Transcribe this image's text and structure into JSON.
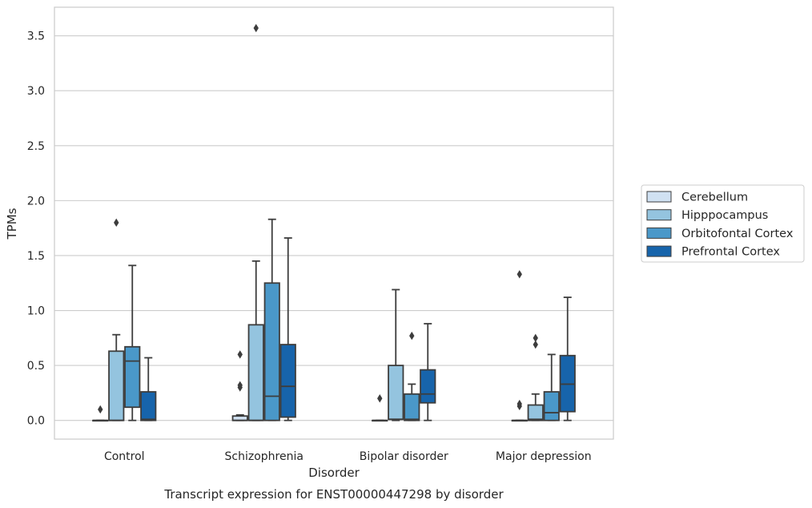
{
  "chart_data": {
    "type": "box",
    "title": "",
    "caption": "Transcript expression for ENST00000447298 by disorder",
    "xlabel": "Disorder",
    "ylabel": "TPMs",
    "ylim": [
      -0.17,
      3.76
    ],
    "yticks": [
      0.0,
      0.5,
      1.0,
      1.5,
      2.0,
      2.5,
      3.0,
      3.5
    ],
    "ytick_labels": [
      "0.0",
      "0.5",
      "1.0",
      "1.5",
      "2.0",
      "2.5",
      "3.0",
      "3.5"
    ],
    "categories": [
      "Control",
      "Schizophrenia",
      "Bipolar disorder",
      "Major depression"
    ],
    "grid": "horizontal",
    "legend_position": "right",
    "series": [
      {
        "name": "Cerebellum",
        "color": "#d0e1f2",
        "boxes": [
          {
            "q1": 0.0,
            "median": 0.0,
            "q3": 0.0,
            "whislo": 0.0,
            "whishi": 0.0,
            "fliers": [
              0.1
            ]
          },
          {
            "q1": 0.0,
            "median": 0.0,
            "q3": 0.04,
            "whislo": 0.0,
            "whishi": 0.05,
            "fliers": [
              0.3,
              0.32,
              0.6
            ]
          },
          {
            "q1": 0.0,
            "median": 0.0,
            "q3": 0.0,
            "whislo": 0.0,
            "whishi": 0.0,
            "fliers": [
              0.2
            ]
          },
          {
            "q1": 0.0,
            "median": 0.0,
            "q3": 0.0,
            "whislo": 0.0,
            "whishi": 0.0,
            "fliers": [
              0.13,
              0.15,
              1.33
            ]
          }
        ]
      },
      {
        "name": "Hipppocampus",
        "color": "#94c4df",
        "boxes": [
          {
            "q1": 0.0,
            "median": 0.0,
            "q3": 0.63,
            "whislo": 0.0,
            "whishi": 0.78,
            "fliers": [
              1.8
            ]
          },
          {
            "q1": 0.0,
            "median": 0.0,
            "q3": 0.87,
            "whislo": 0.0,
            "whishi": 1.45,
            "fliers": [
              3.57
            ]
          },
          {
            "q1": 0.01,
            "median": 0.01,
            "q3": 0.5,
            "whislo": 0.0,
            "whishi": 1.19,
            "fliers": []
          },
          {
            "q1": 0.0,
            "median": 0.01,
            "q3": 0.14,
            "whislo": 0.0,
            "whishi": 0.24,
            "fliers": [
              0.69,
              0.75
            ]
          }
        ]
      },
      {
        "name": "Orbitofontal Cortex",
        "color": "#4a98c9",
        "boxes": [
          {
            "q1": 0.12,
            "median": 0.54,
            "q3": 0.67,
            "whislo": 0.0,
            "whishi": 1.41,
            "fliers": []
          },
          {
            "q1": 0.0,
            "median": 0.22,
            "q3": 1.25,
            "whislo": 0.0,
            "whishi": 1.83,
            "fliers": []
          },
          {
            "q1": 0.0,
            "median": 0.01,
            "q3": 0.24,
            "whislo": 0.0,
            "whishi": 0.33,
            "fliers": [
              0.77
            ]
          },
          {
            "q1": 0.0,
            "median": 0.07,
            "q3": 0.26,
            "whislo": 0.0,
            "whishi": 0.6,
            "fliers": []
          }
        ]
      },
      {
        "name": "Prefrontal Cortex",
        "color": "#1764ab",
        "boxes": [
          {
            "q1": 0.0,
            "median": 0.01,
            "q3": 0.26,
            "whislo": 0.0,
            "whishi": 0.57,
            "fliers": []
          },
          {
            "q1": 0.03,
            "median": 0.31,
            "q3": 0.69,
            "whislo": 0.0,
            "whishi": 1.66,
            "fliers": []
          },
          {
            "q1": 0.16,
            "median": 0.24,
            "q3": 0.46,
            "whislo": 0.0,
            "whishi": 0.88,
            "fliers": []
          },
          {
            "q1": 0.08,
            "median": 0.33,
            "q3": 0.59,
            "whislo": 0.0,
            "whishi": 1.12,
            "fliers": []
          }
        ]
      }
    ]
  }
}
